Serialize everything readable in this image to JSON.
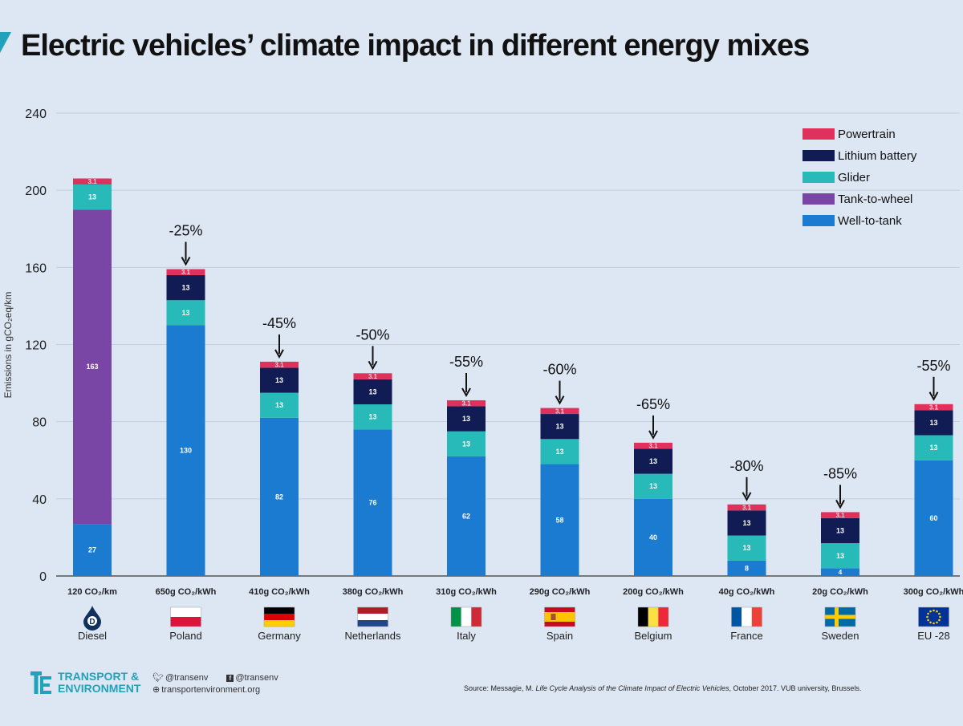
{
  "title": "Electric vehicles’ climate impact in different energy mixes",
  "chart_data": {
    "type": "bar",
    "stacked": true,
    "ylabel": "Emissions in gCO₂eq/km",
    "ylim": [
      0,
      240
    ],
    "yticks": [
      0,
      40,
      80,
      120,
      160,
      200,
      240
    ],
    "grid": true,
    "legend_position": "top-right",
    "categories": [
      "Diesel",
      "Poland",
      "Germany",
      "Netherlands",
      "Italy",
      "Spain",
      "Belgium",
      "France",
      "Sweden",
      "EU -28"
    ],
    "category_sublabels": [
      "120 CO₂/km",
      "650g CO₂/kWh",
      "410g CO₂/kWh",
      "380g CO₂/kWh",
      "310g CO₂/kWh",
      "290g CO₂/kWh",
      "200g CO₂/kWh",
      "40g CO₂/kWh",
      "20g CO₂/kWh",
      "300g CO₂/kWh"
    ],
    "series": [
      {
        "name": "Well-to-tank",
        "color": "#1a7bd0",
        "values": [
          27,
          130,
          82,
          76,
          62,
          58,
          40,
          8,
          4,
          60
        ]
      },
      {
        "name": "Tank-to-wheel",
        "color": "#7a46a6",
        "values": [
          163,
          0,
          0,
          0,
          0,
          0,
          0,
          0,
          0,
          0
        ]
      },
      {
        "name": "Glider",
        "color": "#27bab8",
        "values": [
          13,
          13,
          13,
          13,
          13,
          13,
          13,
          13,
          13,
          13
        ]
      },
      {
        "name": "Lithium battery",
        "color": "#121c54",
        "values": [
          0,
          13,
          13,
          13,
          13,
          13,
          13,
          13,
          13,
          13
        ]
      },
      {
        "name": "Powertrain",
        "color": "#e0305c",
        "values": [
          3.1,
          3.1,
          3.1,
          3.1,
          3.1,
          3.1,
          3.1,
          3.1,
          3.1,
          3.1
        ]
      }
    ],
    "reductions": [
      "",
      "-25%",
      "-45%",
      "-50%",
      "-55%",
      "-60%",
      "-65%",
      "-80%",
      "-85%",
      "-55%"
    ]
  },
  "footer": {
    "org_line1": "TRANSPORT &",
    "org_line2": "ENVIRONMENT",
    "twitter": "@transenv",
    "facebook": "@transenv",
    "website": "transportenvironment.org",
    "source_prefix": "Source: Messagie, M. ",
    "source_title": "Life Cycle Analysis of the Climate Impact of Electric Vehicles",
    "source_suffix": ", October 2017. VUB university, Brussels."
  },
  "colors": {
    "accent": "#21a1ba",
    "background": "#dde6f3"
  }
}
